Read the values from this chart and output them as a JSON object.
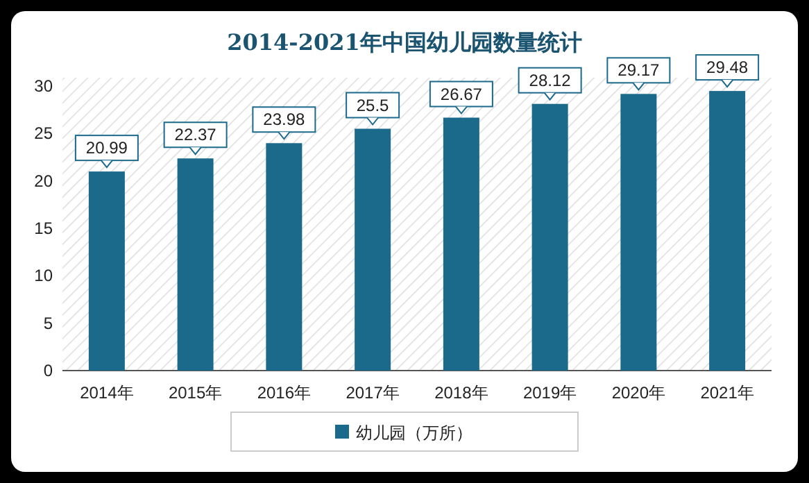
{
  "chart_data": {
    "type": "bar",
    "title": "2014-2021年中国幼儿园数量统计",
    "categories": [
      "2014年",
      "2015年",
      "2016年",
      "2017年",
      "2018年",
      "2019年",
      "2020年",
      "2021年"
    ],
    "series": [
      {
        "name": "幼儿园（万所）",
        "color": "#1b6a8c",
        "values": [
          20.99,
          22.37,
          23.98,
          25.5,
          26.67,
          28.12,
          29.17,
          29.48
        ]
      }
    ],
    "ylim": [
      0,
      30
    ],
    "yticks": [
      0,
      5,
      10,
      15,
      20,
      25,
      30
    ],
    "data_labels": true,
    "legend": "bottom"
  }
}
